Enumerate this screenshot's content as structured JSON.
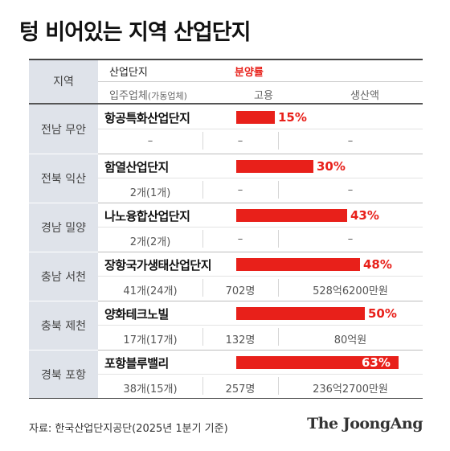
{
  "title": "텅 비어있는 지역 산업단지",
  "header": {
    "region": "지역",
    "complex": "산업단지",
    "occupancy": "분양률",
    "tenants": "입주업체",
    "tenants_sub": "(가동업체)",
    "employment": "고용",
    "production": "생산액"
  },
  "chart_data": {
    "type": "bar",
    "title": "텅 비어있는 지역 산업단지",
    "series": [
      {
        "name": "분양률",
        "values": [
          15,
          30,
          43,
          48,
          50,
          63
        ]
      }
    ],
    "categories": [
      "항공특화산업단지",
      "함열산업단지",
      "나노융합산업단지",
      "장항국가생태산업단지",
      "양화테크노빌",
      "포항블루밸리"
    ],
    "colors": {
      "bar": "#e8201a",
      "region_bg": "#dfe3ea"
    }
  },
  "rows": [
    {
      "region": "전남 무안",
      "complex": "항공특화산업단지",
      "rate": 15,
      "rate_label": "15%",
      "tenants": "–",
      "employment": "–",
      "production": "–"
    },
    {
      "region": "전북 익산",
      "complex": "함열산업단지",
      "rate": 30,
      "rate_label": "30%",
      "tenants": "2개(1개)",
      "employment": "–",
      "production": "–"
    },
    {
      "region": "경남 밀양",
      "complex": "나노융합산업단지",
      "rate": 43,
      "rate_label": "43%",
      "tenants": "2개(2개)",
      "employment": "–",
      "production": "–"
    },
    {
      "region": "충남 서천",
      "complex": "장항국가생태산업단지",
      "rate": 48,
      "rate_label": "48%",
      "tenants": "41개(24개)",
      "employment": "702명",
      "production": "528억6200만원"
    },
    {
      "region": "충북 제천",
      "complex": "양화테크노빌",
      "rate": 50,
      "rate_label": "50%",
      "tenants": "17개(17개)",
      "employment": "132명",
      "production": "80억원"
    },
    {
      "region": "경북 포항",
      "complex": "포항블루밸리",
      "rate": 63,
      "rate_label": "63%",
      "tenants": "38개(15개)",
      "employment": "257명",
      "production": "236억2700만원"
    }
  ],
  "source": "자료: 한국산업단지공단(2025년 1분기 기준)",
  "brand": "The JoongAng"
}
